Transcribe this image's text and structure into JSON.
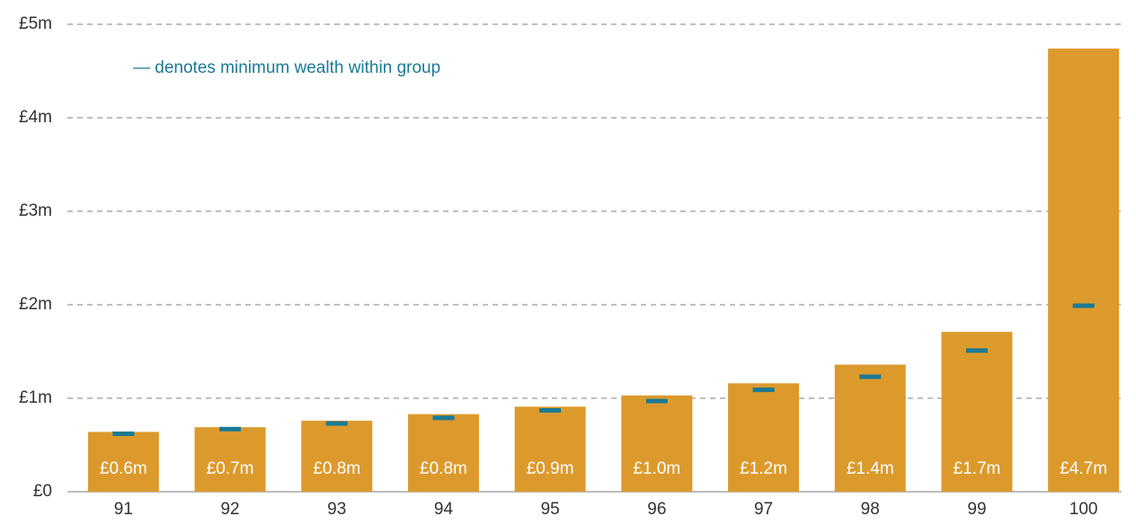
{
  "chart_data": {
    "type": "bar",
    "annotation": "— denotes minimum wealth within group",
    "categories": [
      "91",
      "92",
      "93",
      "94",
      "95",
      "96",
      "97",
      "98",
      "99",
      "100"
    ],
    "series": [
      {
        "color": "#dc9a2c",
        "values": [
          0.64,
          0.69,
          0.76,
          0.83,
          0.91,
          1.03,
          1.16,
          1.36,
          1.71,
          4.74
        ],
        "value_labels": [
          "£0.6m",
          "£0.7m",
          "£0.8m",
          "£0.8m",
          "£0.9m",
          "£1.0m",
          "£1.2m",
          "£1.4m",
          "£1.7m",
          "£4.7m"
        ]
      },
      {
        "color": "#1a7a95",
        "values": [
          0.62,
          0.67,
          0.73,
          0.79,
          0.87,
          0.97,
          1.09,
          1.23,
          1.51,
          1.99
        ]
      }
    ],
    "ylim": [
      0,
      5
    ],
    "yticks": [
      {
        "value": 0,
        "label": "£0"
      },
      {
        "value": 1,
        "label": "£1m"
      },
      {
        "value": 2,
        "label": "£2m"
      },
      {
        "value": 3,
        "label": "£3m"
      },
      {
        "value": 4,
        "label": "£4m"
      },
      {
        "value": 5,
        "label": "£5m"
      }
    ],
    "grid": true
  }
}
